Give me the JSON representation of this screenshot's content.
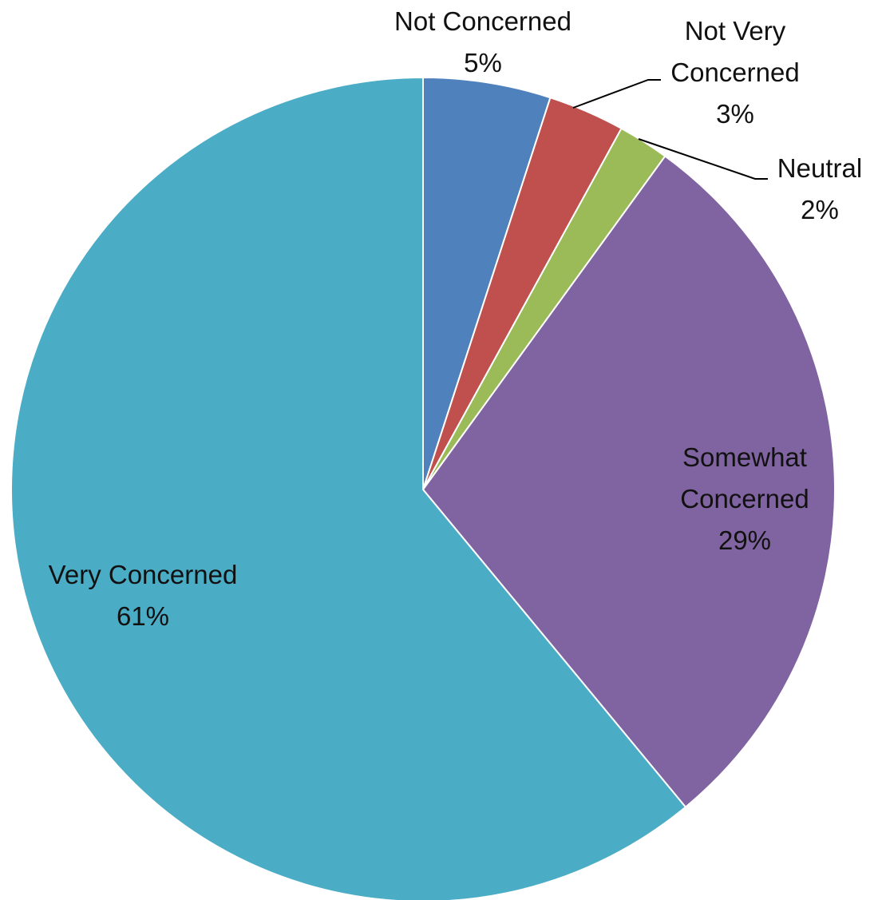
{
  "chart_data": {
    "type": "pie",
    "title": "",
    "start_angle_deg": 0,
    "direction": "clockwise",
    "slices": [
      {
        "label": "Not Concerned",
        "value": 5,
        "value_label": "5%",
        "color": "#4F81BD"
      },
      {
        "label": "Not Very Concerned",
        "value": 3,
        "value_label": "3%",
        "color": "#C0504D"
      },
      {
        "label": "Neutral",
        "value": 2,
        "value_label": "2%",
        "color": "#9BBB59"
      },
      {
        "label": "Somewhat Concerned",
        "value": 29,
        "value_label": "29%",
        "color": "#8064A2"
      },
      {
        "label": "Very Concerned",
        "value": 61,
        "value_label": "61%",
        "color": "#4BACC6"
      }
    ]
  }
}
